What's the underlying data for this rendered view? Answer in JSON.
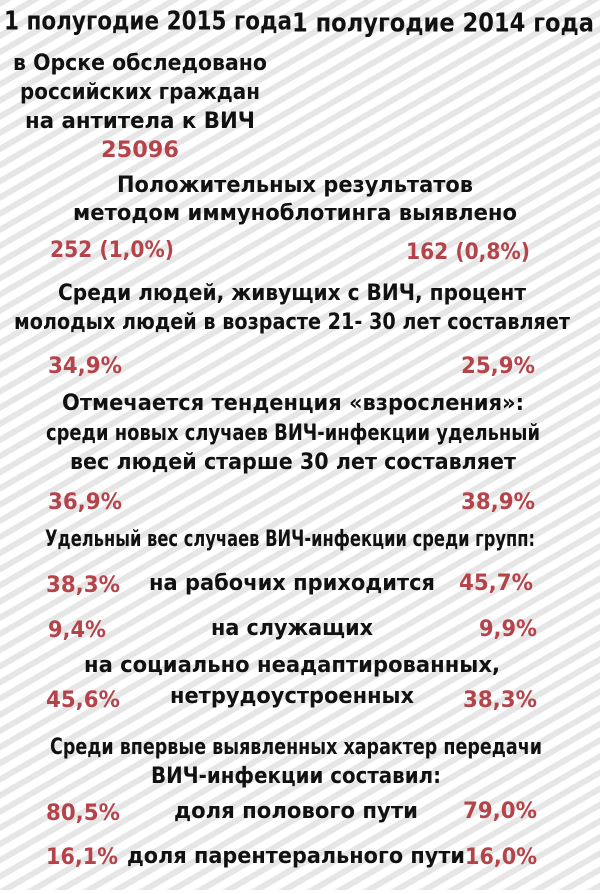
{
  "header": {
    "left": "1 полугодие 2015 года",
    "right": "1 полугодие 2014 года"
  },
  "tested": {
    "lines": [
      "в Орске обследовано",
      "российских граждан",
      "на антитела к ВИЧ"
    ],
    "value": "25096"
  },
  "positive": {
    "lines": [
      "Положительных результатов",
      "методом иммуноблотинга выявлено"
    ],
    "left": "252 (1,0%)",
    "right": "162 (0,8%)"
  },
  "youth": {
    "lines": [
      "Среди людей, живущих с ВИЧ, процент",
      "молодых людей в возрасте 21- 30 лет составляет"
    ],
    "left": "34,9%",
    "right": "25,9%"
  },
  "aging": {
    "lines": [
      "Отмечается тенденция «взросления»:",
      "среди новых случаев ВИЧ-инфекции удельный",
      "вес людей старше 30 лет составляет"
    ],
    "left": "36,9%",
    "right": "38,9%"
  },
  "groups": {
    "title": "Удельный вес случаев ВИЧ-инфекции среди групп:",
    "rows": [
      {
        "lines": [
          "на рабочих приходится"
        ],
        "left": "38,3%",
        "right": "45,7%"
      },
      {
        "lines": [
          "на служащих"
        ],
        "left": "9,4%",
        "right": "9,9%"
      },
      {
        "lines": [
          "на социально неадаптированных,",
          "нетрудоустроенных"
        ],
        "left": "45,6%",
        "right": "38,3%"
      }
    ]
  },
  "transmission": {
    "lines": [
      "Среди впервые выявленных характер передачи",
      "ВИЧ-инфекции составил:"
    ],
    "rows": [
      {
        "lines": [
          "доля полового пути"
        ],
        "left": "80,5%",
        "right": "79,0%"
      },
      {
        "lines": [
          "доля парентерального пути"
        ],
        "left": "16,1%",
        "right": "16,0%"
      }
    ]
  }
}
